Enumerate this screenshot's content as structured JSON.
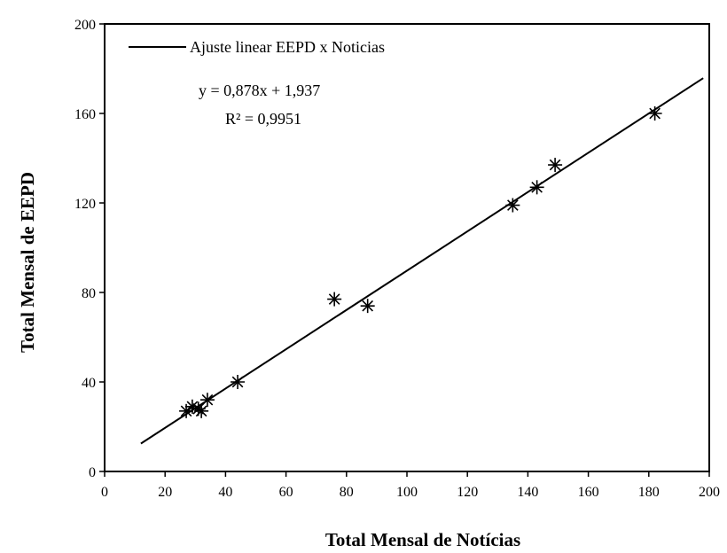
{
  "chart_data": {
    "type": "scatter",
    "xlabel": "Total Mensal de Notícias",
    "ylabel": "Total Mensal de EEPD",
    "xlim": [
      0,
      200
    ],
    "ylim": [
      0,
      200
    ],
    "x_ticks": [
      "0",
      "20",
      "40",
      "60",
      "80",
      "100",
      "120",
      "140",
      "160",
      "180",
      "200"
    ],
    "y_ticks": [
      "0",
      "40",
      "80",
      "120",
      "160",
      "200"
    ],
    "grid": false,
    "legend_position": "top-left",
    "series": [
      {
        "marker": "asterisk",
        "points": [
          {
            "x": 27,
            "y": 27
          },
          {
            "x": 29,
            "y": 29
          },
          {
            "x": 31,
            "y": 28
          },
          {
            "x": 32,
            "y": 27
          },
          {
            "x": 34,
            "y": 32
          },
          {
            "x": 44,
            "y": 40
          },
          {
            "x": 76,
            "y": 77
          },
          {
            "x": 87,
            "y": 74
          },
          {
            "x": 135,
            "y": 119
          },
          {
            "x": 143,
            "y": 127
          },
          {
            "x": 149,
            "y": 137
          },
          {
            "x": 182,
            "y": 160
          }
        ]
      }
    ],
    "fit_line": {
      "name": "Ajuste linear EEPD x Noticias",
      "slope": 0.878,
      "intercept": 1.937,
      "x_range": [
        12,
        198
      ]
    },
    "annotations": {
      "equation": "y = 0,878x + 1,937",
      "r_squared": "R² = 0,9951"
    },
    "colors": {
      "line": "#000000",
      "marker": "#000000"
    }
  }
}
